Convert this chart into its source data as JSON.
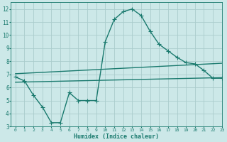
{
  "xlabel": "Humidex (Indice chaleur)",
  "xlim": [
    -0.5,
    23
  ],
  "ylim": [
    3,
    12.5
  ],
  "xticks": [
    0,
    1,
    2,
    3,
    4,
    5,
    6,
    7,
    8,
    9,
    10,
    11,
    12,
    13,
    14,
    15,
    16,
    17,
    18,
    19,
    20,
    21,
    22,
    23
  ],
  "yticks": [
    3,
    4,
    5,
    6,
    7,
    8,
    9,
    10,
    11,
    12
  ],
  "bg_color": "#cce8e8",
  "grid_color": "#aacccc",
  "line_color": "#1a7a6e",
  "line1_x": [
    0,
    1,
    2,
    3,
    4,
    5,
    6,
    7,
    8,
    9,
    10,
    11,
    12,
    13,
    14,
    15,
    16,
    17,
    18,
    19,
    20,
    21,
    22,
    23
  ],
  "line1_y": [
    6.8,
    6.5,
    5.4,
    4.5,
    3.3,
    3.3,
    5.6,
    5.0,
    5.0,
    5.0,
    9.5,
    11.2,
    11.8,
    12.0,
    11.5,
    10.3,
    9.3,
    8.8,
    8.3,
    7.9,
    7.8,
    7.3,
    6.7,
    6.7
  ],
  "line2_x": [
    0,
    23
  ],
  "line2_y": [
    7.05,
    7.85
  ],
  "line3_x": [
    0,
    23
  ],
  "line3_y": [
    6.4,
    6.75
  ],
  "markersize": 3,
  "linewidth": 1.0
}
